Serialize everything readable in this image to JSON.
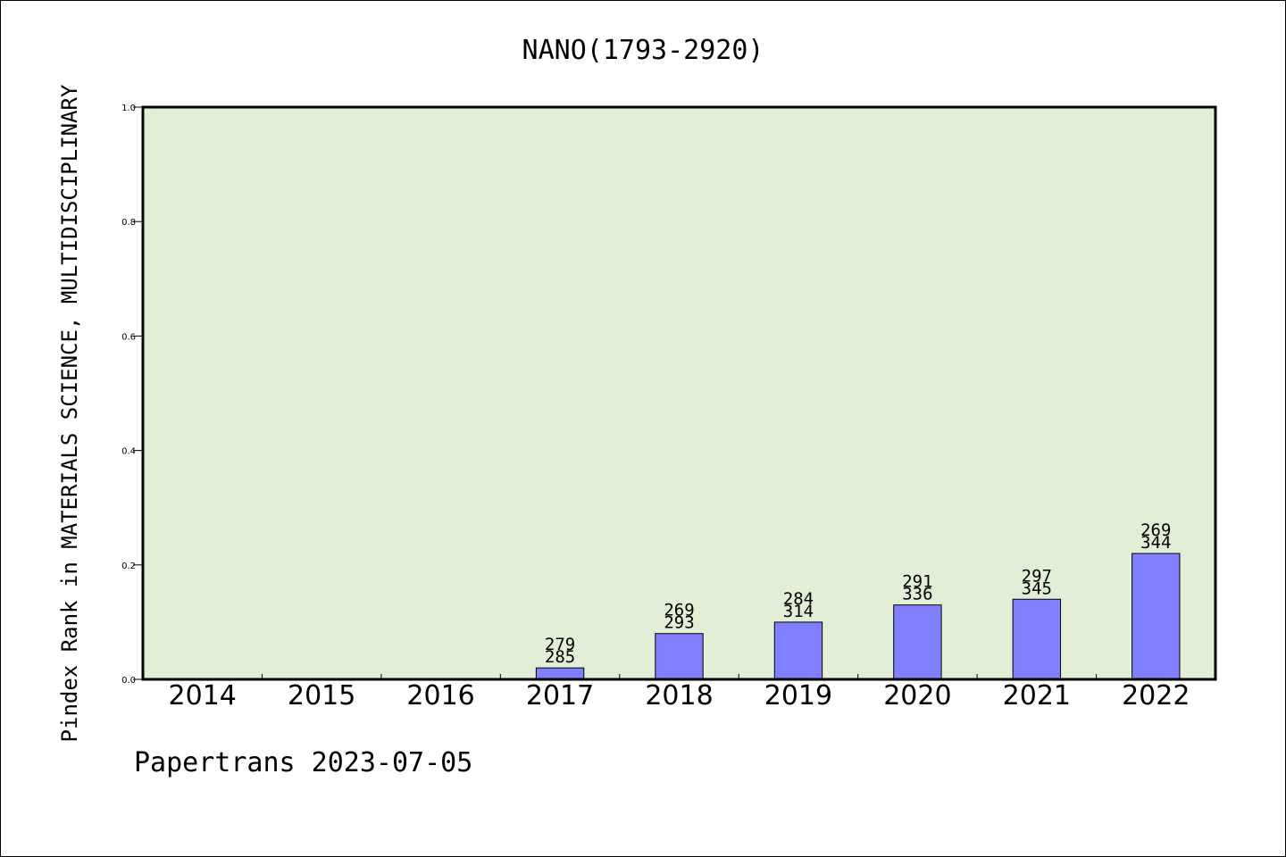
{
  "chart_data": {
    "type": "bar",
    "title": "NANO(1793-2920)",
    "ylabel": "Pindex Rank in MATERIALS SCIENCE, MULTIDISCIPLINARY",
    "xlabel": "",
    "categories": [
      "2014",
      "2015",
      "2016",
      "2017",
      "2018",
      "2019",
      "2020",
      "2021",
      "2022"
    ],
    "values": [
      0,
      0,
      0,
      0.02,
      0.08,
      0.1,
      0.13,
      0.14,
      0.22
    ],
    "bar_labels": [
      [
        "",
        ""
      ],
      [
        "",
        ""
      ],
      [
        "",
        ""
      ],
      [
        "279",
        "285"
      ],
      [
        "269",
        "293"
      ],
      [
        "284",
        "314"
      ],
      [
        "291",
        "336"
      ],
      [
        "297",
        "345"
      ],
      [
        "269",
        "344"
      ]
    ],
    "ylim": [
      0,
      1.0
    ],
    "yticks": [
      "0.0",
      "0.2",
      "0.4",
      "0.6",
      "0.8",
      "1.0"
    ],
    "grid": false,
    "colors": {
      "plot_background": "#e2efd6",
      "bar_fill": "#8080ff",
      "bar_stroke": "#000000"
    }
  },
  "footer": {
    "text": "Papertrans 2023-07-05"
  }
}
